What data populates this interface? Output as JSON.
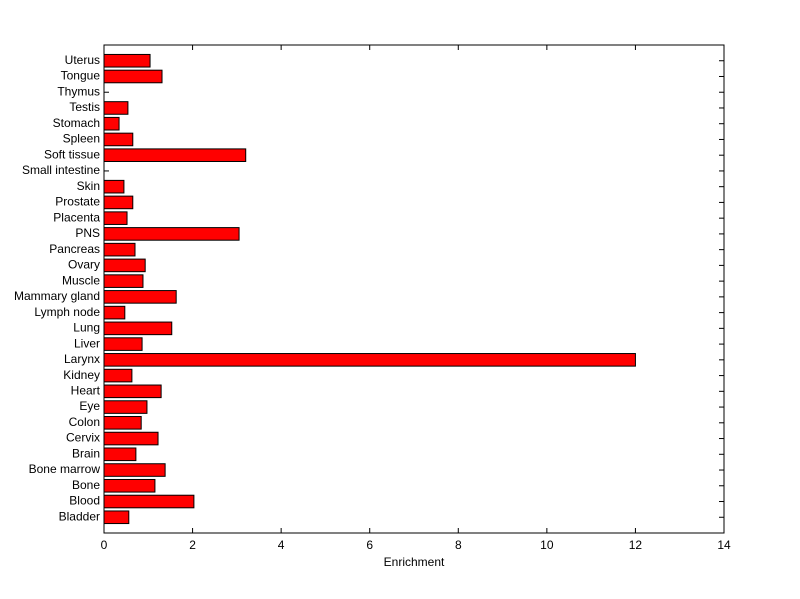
{
  "chart_data": {
    "type": "barh",
    "xlabel": "Enrichment",
    "categories": [
      "Bladder",
      "Blood",
      "Bone",
      "Bone marrow",
      "Brain",
      "Cervix",
      "Colon",
      "Eye",
      "Heart",
      "Kidney",
      "Larynx",
      "Liver",
      "Lung",
      "Lymph node",
      "Mammary gland",
      "Muscle",
      "Ovary",
      "Pancreas",
      "PNS",
      "Placenta",
      "Prostate",
      "Skin",
      "Small intestine",
      "Soft tissue",
      "Spleen",
      "Stomach",
      "Testis",
      "Thymus",
      "Tongue",
      "Uterus"
    ],
    "values": [
      0.56,
      2.03,
      1.15,
      1.38,
      0.72,
      1.22,
      0.84,
      0.97,
      1.29,
      0.63,
      12.0,
      0.86,
      1.53,
      0.47,
      1.63,
      0.88,
      0.93,
      0.7,
      3.05,
      0.52,
      0.65,
      0.45,
      0,
      3.2,
      0.65,
      0.34,
      0.54,
      0,
      1.31,
      1.04
    ],
    "color": "#ff0000",
    "xlim": [
      0,
      14
    ],
    "xticks": [
      0,
      2,
      4,
      6,
      8,
      10,
      12,
      14
    ]
  }
}
